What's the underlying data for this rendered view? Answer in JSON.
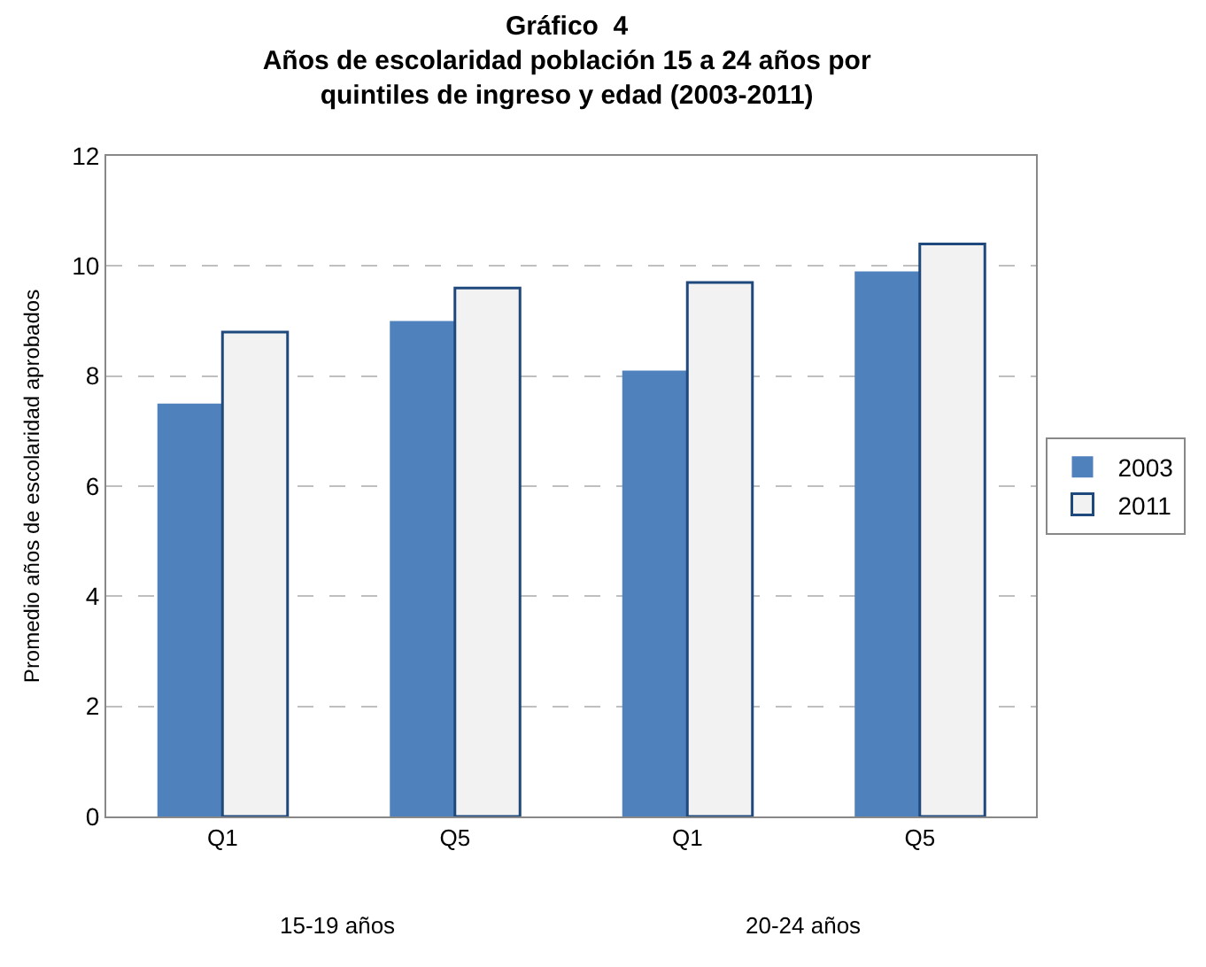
{
  "chart_data": {
    "type": "bar",
    "title": "Gráfico  4\nAños de escolaridad población 15 a 24 años por\nquintiles de ingreso y edad (2003-2011)",
    "ylabel": "Promedio años de escolaridad aprobados",
    "categories": [
      "Q1",
      "Q5",
      "Q1",
      "Q5"
    ],
    "series": [
      {
        "name": "2003",
        "color": "#4f81bd",
        "values": [
          7.5,
          9.0,
          8.1,
          9.9
        ]
      },
      {
        "name": "2011",
        "color": "#f2f2f2",
        "values": [
          8.8,
          9.6,
          9.7,
          10.4
        ]
      }
    ],
    "annotations": [
      "15-19 años",
      "20-24 años"
    ],
    "ylim": [
      0,
      12
    ],
    "yticks": [
      0,
      2,
      4,
      6,
      8,
      10,
      12
    ],
    "grid": "y",
    "legend": "right"
  }
}
